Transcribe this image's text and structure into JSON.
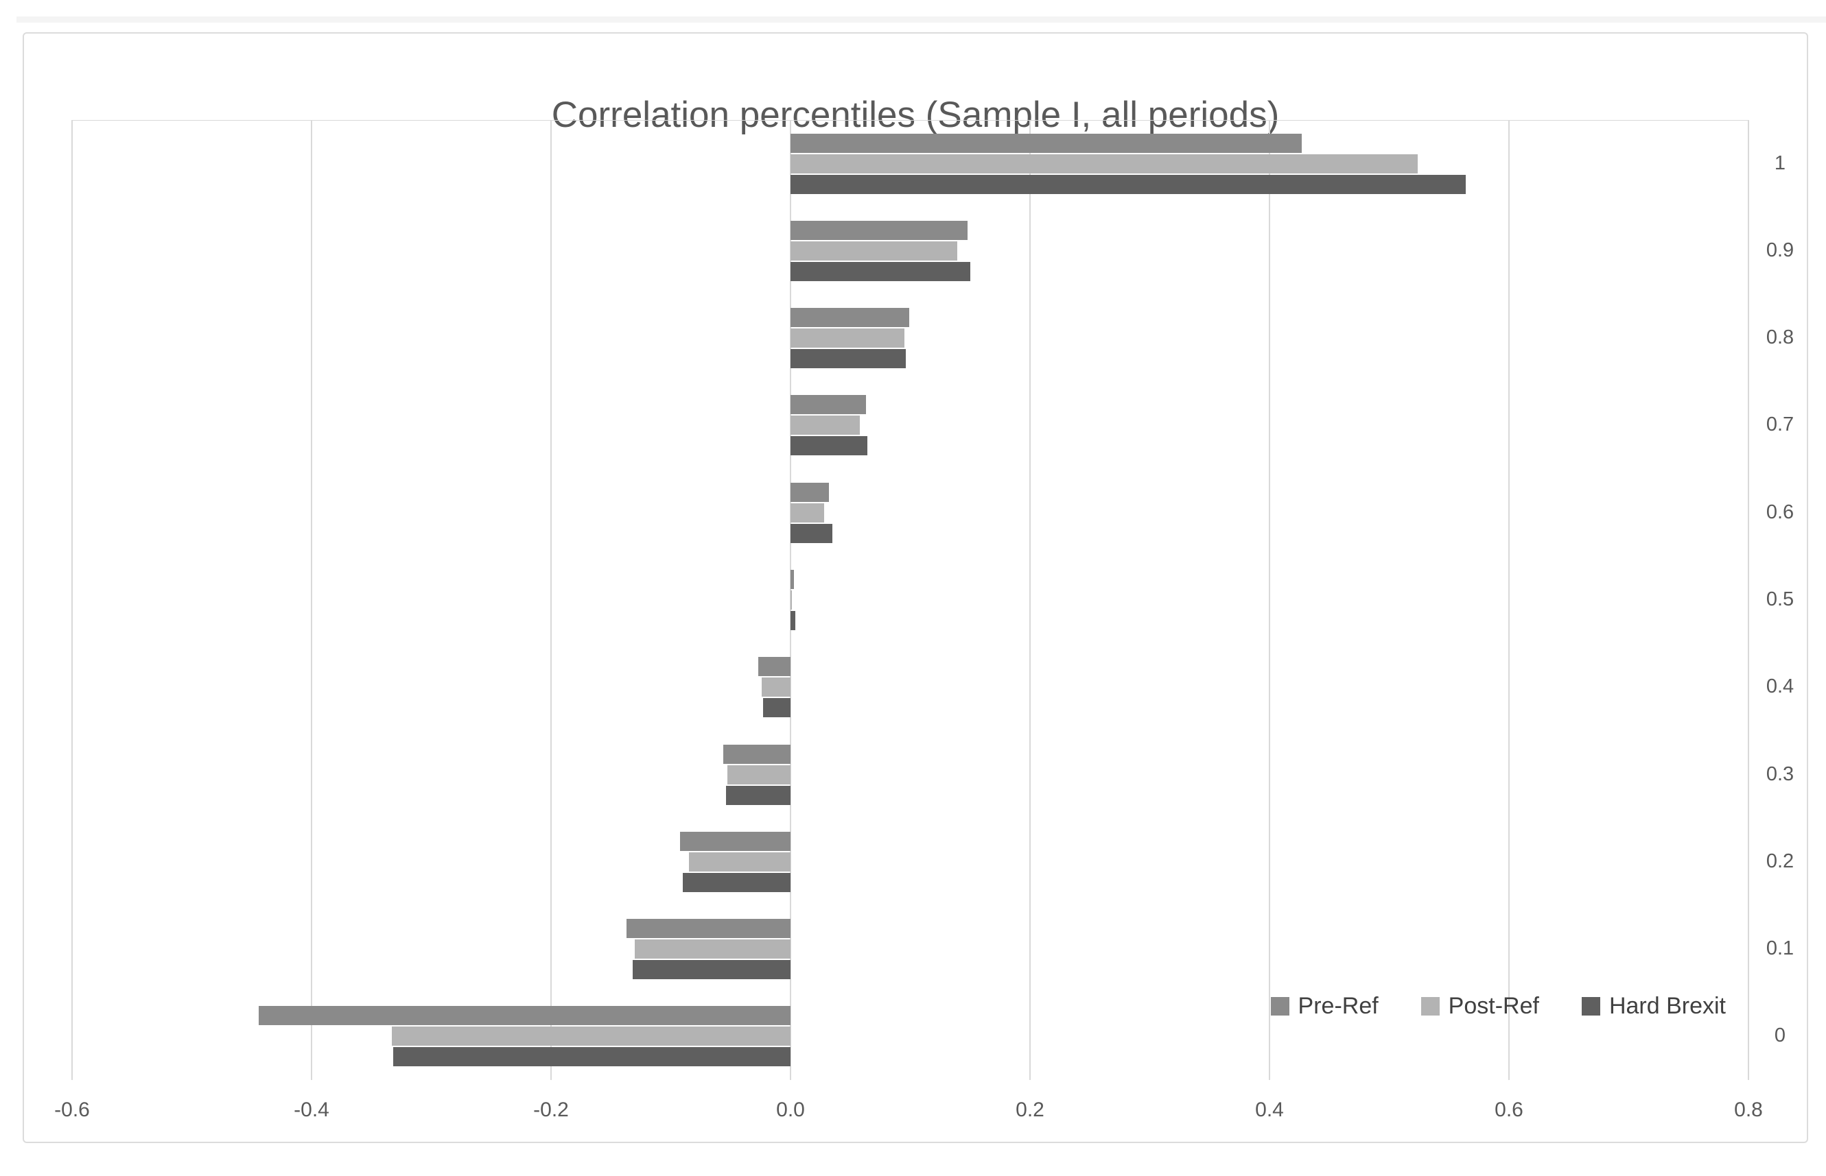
{
  "chart_data": {
    "type": "bar",
    "orientation": "horizontal",
    "title": "Correlation percentiles (Sample I, all periods)",
    "categories": [
      "1",
      "0.9",
      "0.8",
      "0.7",
      "0.6",
      "0.5",
      "0.4",
      "0.3",
      "0.2",
      "0.1",
      "0"
    ],
    "series": [
      {
        "name": "Pre-Ref",
        "color": "#8a8a8a",
        "values": [
          0.427,
          0.148,
          0.099,
          0.063,
          0.032,
          0.003,
          -0.027,
          -0.056,
          -0.092,
          -0.137,
          -0.444
        ]
      },
      {
        "name": "Post-Ref",
        "color": "#b3b3b3",
        "values": [
          0.524,
          0.139,
          0.095,
          0.058,
          0.028,
          0.001,
          -0.024,
          -0.053,
          -0.085,
          -0.13,
          -0.333
        ]
      },
      {
        "name": "Hard Brexit",
        "color": "#5f5f5f",
        "values": [
          0.564,
          0.15,
          0.096,
          0.064,
          0.035,
          0.004,
          -0.023,
          -0.054,
          -0.09,
          -0.132,
          -0.332
        ]
      }
    ],
    "x_axis": {
      "min": -0.6,
      "max": 0.8,
      "step": 0.2,
      "tick_labels": [
        "-0.6",
        "-0.4",
        "-0.2",
        "0.0",
        "0.2",
        "0.4",
        "0.6",
        "0.8"
      ]
    },
    "grid": "vertical-gridlines-on",
    "legend_position": "inside-bottom-right",
    "colors": {
      "gridline": "#d9d9d9",
      "axis_text": "#595959",
      "title_text": "#595959",
      "legend_text": "#404040"
    }
  }
}
